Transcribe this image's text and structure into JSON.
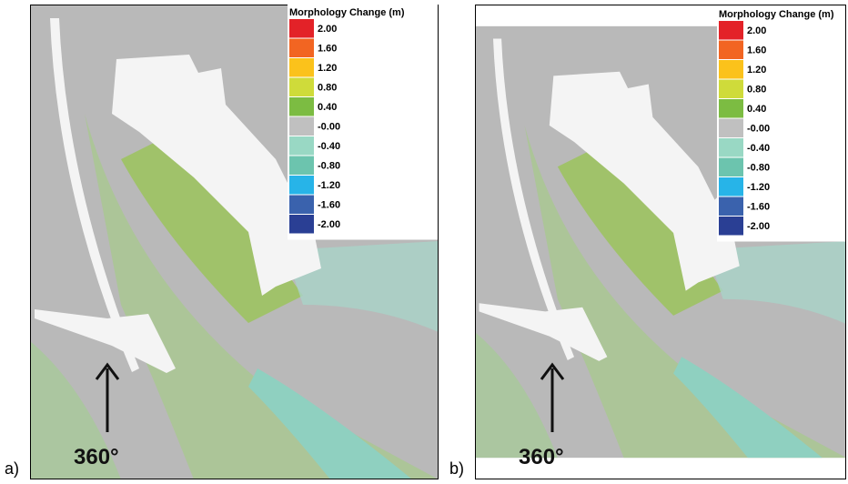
{
  "panels": [
    {
      "label": "a)",
      "direction_label": "360°",
      "legend": {
        "title": "Morphology Change (m)",
        "entries": [
          {
            "label": "2.00",
            "color": "#e32228"
          },
          {
            "label": "1.60",
            "color": "#f26522"
          },
          {
            "label": "1.20",
            "color": "#fbc21b"
          },
          {
            "label": "0.80",
            "color": "#cfdb3a"
          },
          {
            "label": "0.40",
            "color": "#7cbc42"
          },
          {
            "label": "-0.00",
            "color": "#c0c0c0"
          },
          {
            "label": "-0.40",
            "color": "#99d8c4"
          },
          {
            "label": "-0.80",
            "color": "#6cc4ae"
          },
          {
            "label": "-1.20",
            "color": "#27b4e8"
          },
          {
            "label": "-1.60",
            "color": "#3a62ad"
          },
          {
            "label": "-2.00",
            "color": "#2a3f94"
          }
        ]
      }
    },
    {
      "label": "b)",
      "direction_label": "360°",
      "legend": {
        "title": "Morphology Change (m)",
        "entries": [
          {
            "label": "2.00",
            "color": "#e32228"
          },
          {
            "label": "1.60",
            "color": "#f26522"
          },
          {
            "label": "1.20",
            "color": "#fbc21b"
          },
          {
            "label": "0.80",
            "color": "#cfdb3a"
          },
          {
            "label": "0.40",
            "color": "#7cbc42"
          },
          {
            "label": "-0.00",
            "color": "#c0c0c0"
          },
          {
            "label": "-0.40",
            "color": "#99d8c4"
          },
          {
            "label": "-0.80",
            "color": "#6cc4ae"
          },
          {
            "label": "-1.20",
            "color": "#27b4e8"
          },
          {
            "label": "-1.60",
            "color": "#3a62ad"
          },
          {
            "label": "-2.00",
            "color": "#2a3f94"
          }
        ]
      }
    }
  ]
}
